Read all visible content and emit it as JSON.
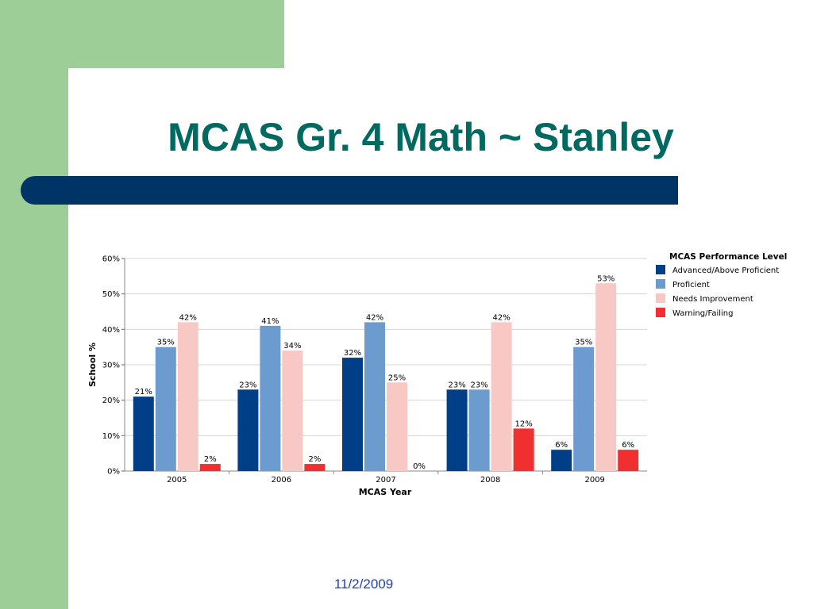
{
  "slide": {
    "title": "MCAS Gr. 4 Math ~ Stanley",
    "date": "11/2/2009"
  },
  "colors": {
    "green": "#9dce98",
    "navy": "#003366",
    "title": "#006a60",
    "date": "#1f3fbf"
  },
  "chart_data": {
    "type": "bar",
    "title": "",
    "xlabel": "MCAS Year",
    "ylabel": "School %",
    "ylim": [
      0,
      60
    ],
    "yticks": [
      0,
      10,
      20,
      30,
      40,
      50,
      60
    ],
    "ytick_suffix": "%",
    "grid": true,
    "legend_title": "MCAS Performance Level",
    "legend_position": "right",
    "categories": [
      "2005",
      "2006",
      "2007",
      "2008",
      "2009"
    ],
    "series": [
      {
        "name": "Advanced/Above Proficient",
        "color": "#003f87",
        "values": [
          21,
          23,
          32,
          23,
          6
        ]
      },
      {
        "name": "Proficient",
        "color": "#6b9bcf",
        "values": [
          35,
          41,
          42,
          23,
          35
        ]
      },
      {
        "name": "Needs Improvement",
        "color": "#f7c8c4",
        "values": [
          42,
          34,
          25,
          42,
          53
        ]
      },
      {
        "name": "Warning/Failing",
        "color": "#f03030",
        "values": [
          2,
          2,
          0,
          12,
          6
        ]
      }
    ]
  }
}
